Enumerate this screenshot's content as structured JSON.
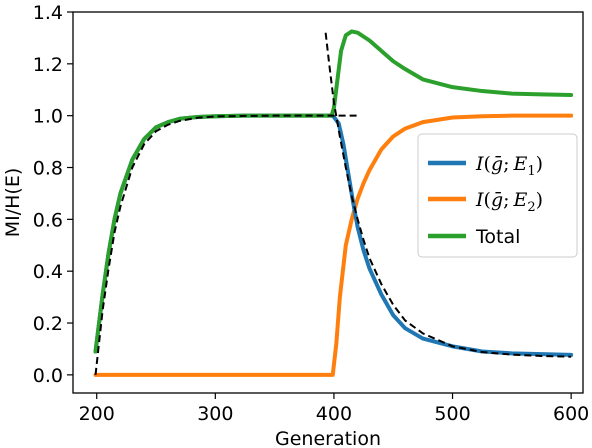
{
  "chart_data": {
    "type": "line",
    "xlabel": "Generation",
    "ylabel": "MI/H(E)",
    "xlim": [
      180,
      610
    ],
    "ylim": [
      -0.07,
      1.4
    ],
    "xticks": [
      200,
      300,
      400,
      500,
      600
    ],
    "yticks": [
      0.0,
      0.2,
      0.4,
      0.6,
      0.8,
      1.0,
      1.2,
      1.4
    ],
    "xtick_labels": [
      "200",
      "300",
      "400",
      "500",
      "600"
    ],
    "ytick_labels": [
      "0.0",
      "0.2",
      "0.4",
      "0.6",
      "0.8",
      "1.0",
      "1.2",
      "1.4"
    ],
    "grid": false,
    "legend_position": "center-right",
    "series": [
      {
        "name": "I(ḡ; E₁)",
        "legend_text": {
          "i": "I",
          "open": "(",
          "g": "ḡ",
          "sep": ";",
          "e": "E",
          "sub": "1",
          "close": ")"
        },
        "color": "#1f77b4",
        "x": [
          199,
          205,
          210,
          215,
          220,
          230,
          240,
          250,
          260,
          270,
          285,
          300,
          325,
          350,
          375,
          398,
          400,
          404,
          408,
          412,
          416,
          420,
          425,
          430,
          440,
          450,
          460,
          475,
          500,
          525,
          550,
          575,
          600
        ],
        "y": [
          0.09,
          0.31,
          0.47,
          0.6,
          0.7,
          0.83,
          0.91,
          0.955,
          0.975,
          0.988,
          0.995,
          0.998,
          1.0,
          1.0,
          1.0,
          1.0,
          0.995,
          0.97,
          0.89,
          0.78,
          0.67,
          0.57,
          0.48,
          0.41,
          0.31,
          0.23,
          0.18,
          0.14,
          0.11,
          0.09,
          0.083,
          0.08,
          0.077
        ]
      },
      {
        "name": "I(ḡ; E₂)",
        "legend_text": {
          "i": "I",
          "open": "(",
          "g": "ḡ",
          "sep": ";",
          "e": "E",
          "sub": "2",
          "close": ")"
        },
        "color": "#ff7f0e",
        "x": [
          199,
          250,
          300,
          350,
          399,
          400,
          402,
          405,
          410,
          415,
          420,
          425,
          430,
          440,
          450,
          460,
          475,
          500,
          525,
          550,
          575,
          600
        ],
        "y": [
          0.0,
          0.0,
          0.0,
          0.0,
          0.0,
          0.04,
          0.12,
          0.3,
          0.5,
          0.6,
          0.68,
          0.74,
          0.79,
          0.87,
          0.92,
          0.95,
          0.975,
          0.993,
          0.998,
          1.0,
          1.0,
          1.0
        ]
      },
      {
        "name": "Total",
        "legend_text": {
          "label": "Total"
        },
        "color": "#2ca02c",
        "x": [
          199,
          205,
          210,
          215,
          220,
          230,
          240,
          250,
          260,
          270,
          285,
          300,
          325,
          350,
          375,
          398,
          400,
          403,
          406,
          410,
          415,
          420,
          430,
          440,
          450,
          460,
          475,
          500,
          525,
          550,
          575,
          600
        ],
        "y": [
          0.09,
          0.31,
          0.47,
          0.6,
          0.7,
          0.83,
          0.91,
          0.955,
          0.975,
          0.988,
          0.995,
          0.998,
          1.0,
          1.0,
          1.0,
          1.0,
          1.03,
          1.14,
          1.25,
          1.31,
          1.325,
          1.32,
          1.29,
          1.25,
          1.21,
          1.18,
          1.14,
          1.11,
          1.095,
          1.085,
          1.082,
          1.08
        ]
      }
    ],
    "fits": [
      {
        "style": "dashed",
        "color": "#000000",
        "x": [
          199,
          205,
          210,
          215,
          220,
          230,
          240,
          250,
          260,
          270,
          285,
          300,
          325,
          350,
          375,
          400,
          420
        ],
        "y": [
          0.0,
          0.25,
          0.41,
          0.55,
          0.65,
          0.8,
          0.89,
          0.94,
          0.965,
          0.98,
          0.992,
          0.997,
          0.999,
          1.0,
          1.0,
          1.0,
          1.0
        ]
      },
      {
        "style": "dashed",
        "color": "#000000",
        "x": [
          393,
          396,
          400,
          405,
          410,
          415,
          420,
          425,
          430,
          440,
          450,
          460,
          475,
          500,
          525,
          550,
          575,
          600
        ],
        "y": [
          1.32,
          1.2,
          1.05,
          0.92,
          0.8,
          0.69,
          0.6,
          0.52,
          0.45,
          0.35,
          0.27,
          0.21,
          0.16,
          0.11,
          0.088,
          0.078,
          0.073,
          0.07
        ]
      }
    ]
  }
}
